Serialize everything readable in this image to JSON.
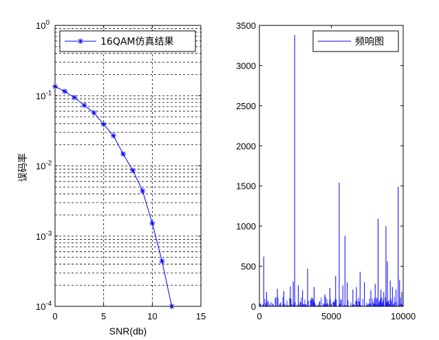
{
  "chart_data": [
    {
      "type": "line",
      "yscale": "log",
      "xlabel": "SNR(db)",
      "ylabel": "误码率",
      "xlim": [
        0,
        15
      ],
      "ylim": [
        0.0001,
        1
      ],
      "xticks": [
        0,
        5,
        10,
        15
      ],
      "yticks": [
        0.0001,
        0.001,
        0.01,
        0.1,
        1
      ],
      "ytick_labels": [
        {
          "base": "10",
          "exp": "-4"
        },
        {
          "base": "10",
          "exp": "-3"
        },
        {
          "base": "10",
          "exp": "-2"
        },
        {
          "base": "10",
          "exp": "-1"
        },
        {
          "base": "10",
          "exp": "0"
        }
      ],
      "grid": true,
      "legend_position": "top",
      "series": [
        {
          "name": "16QAM仿真结果",
          "marker": "*",
          "color": "#0000ff",
          "x": [
            0,
            1,
            2,
            3,
            4,
            5,
            6,
            7,
            8,
            9,
            10,
            11,
            12
          ],
          "y": [
            0.135,
            0.115,
            0.094,
            0.073,
            0.057,
            0.039,
            0.027,
            0.0148,
            0.0086,
            0.0044,
            0.00152,
            0.00044,
            0.0001
          ]
        }
      ]
    },
    {
      "type": "line",
      "xlabel": "",
      "ylabel": "",
      "xlim": [
        0,
        10000
      ],
      "ylim": [
        0,
        3500
      ],
      "xticks": [
        0,
        5000,
        10000
      ],
      "yticks": [
        0,
        500,
        1000,
        1500,
        2000,
        2500,
        3000,
        3500
      ],
      "grid": false,
      "legend_position": "top-right",
      "series": [
        {
          "name": "频响图",
          "color": "#0000ff",
          "style": "impulses",
          "baseline_noise_max": 120,
          "x": [
            300,
            500,
            1250,
            1700,
            2150,
            2350,
            2450,
            2700,
            3000,
            3350,
            3800,
            4550,
            4900,
            5300,
            5550,
            5800,
            5950,
            6100,
            6500,
            6750,
            7000,
            7300,
            7750,
            8050,
            8250,
            8450,
            8650,
            8800,
            8900,
            9100,
            9250,
            9500,
            9650,
            9750,
            9900
          ],
          "y": [
            620,
            180,
            220,
            190,
            250,
            310,
            3380,
            260,
            200,
            470,
            240,
            150,
            230,
            380,
            1540,
            260,
            880,
            300,
            210,
            240,
            430,
            300,
            200,
            280,
            1090,
            210,
            180,
            1000,
            560,
            320,
            240,
            210,
            1490,
            330,
            180
          ]
        }
      ]
    }
  ]
}
